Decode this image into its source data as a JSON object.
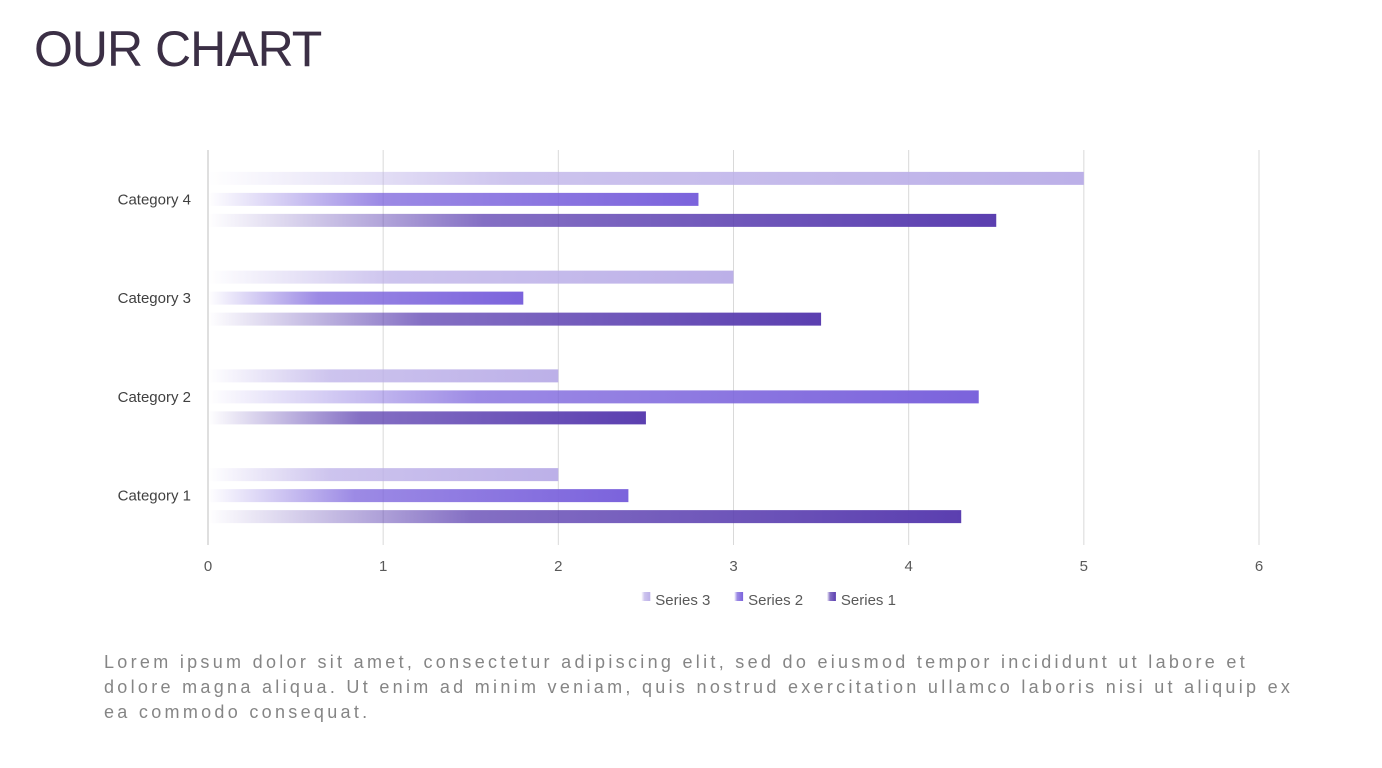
{
  "title": "OUR CHART",
  "body_text": "Lorem ipsum dolor sit amet, consectetur adipiscing elit, sed do eiusmod tempor incididunt ut labore et dolore magna aliqua. Ut enim ad minim veniam, quis nostrud exercitation ullamco laboris nisi ut aliquip ex ea commodo consequat.",
  "chart_data": {
    "type": "bar",
    "orientation": "horizontal",
    "categories": [
      "Category 1",
      "Category 2",
      "Category 3",
      "Category 4"
    ],
    "series": [
      {
        "name": "Series 1",
        "values": [
          4.3,
          2.5,
          3.5,
          4.5
        ],
        "color": "#5b3fb0"
      },
      {
        "name": "Series 2",
        "values": [
          2.4,
          4.4,
          1.8,
          2.8
        ],
        "color": "#7b63dc"
      },
      {
        "name": "Series 3",
        "values": [
          2,
          2,
          3,
          5
        ],
        "color": "#bcb0e8"
      }
    ],
    "legend_order": [
      "Series 3",
      "Series 2",
      "Series 1"
    ],
    "xlim": [
      0,
      6
    ],
    "x_ticks": [
      "0",
      "1",
      "2",
      "3",
      "4",
      "5",
      "6"
    ],
    "grid": true,
    "legend_position": "bottom",
    "bar_fill": "gradient-fade-left"
  }
}
